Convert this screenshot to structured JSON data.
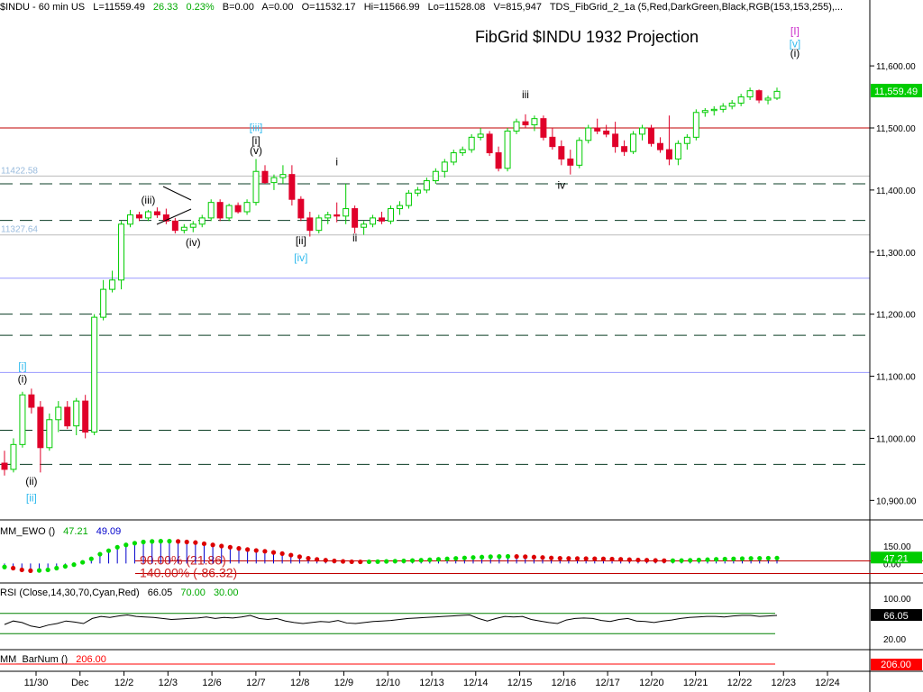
{
  "header": {
    "symbol": "$INDU - 60 min  US",
    "last": "L=11559.49",
    "change": "26.33",
    "change_pct": "0.23%",
    "bid": "B=0.00",
    "ask": "A=0.00",
    "open": "O=11532.17",
    "high": "Hi=11566.99",
    "low": "Lo=11528.08",
    "volume": "V=815,947",
    "indicator": "TDS_FibGrid_2_1a (5,Red,DarkGreen,Black,RGB(153,153,255),..."
  },
  "colors": {
    "up": "#00cc00",
    "down": "#e0002a",
    "fib_dashed": "#0b3d24",
    "fib_blue": "#9999ff",
    "fib_red": "#c00000",
    "wave_cyan": "#33bbee",
    "wave_magenta": "#cc33cc",
    "ewo_positive": "#00dd00",
    "ewo_negative": "#dd0000",
    "ewo_hist": "#0000cc",
    "rsi_line": "#000000",
    "rsi_bands": "#008000",
    "barnum": "#ff0000"
  },
  "chart_data": [
    {
      "type": "candlestick",
      "title": "FibGrid $INDU 1932 Projection",
      "ylim": [
        10870,
        11680
      ],
      "yticks": [
        "11,600.00",
        "11,500.00",
        "11,400.00",
        "11,300.00",
        "11,200.00",
        "11,100.00",
        "11,000.00",
        "10,900.00"
      ],
      "ytick_values": [
        11600,
        11500,
        11400,
        11300,
        11200,
        11100,
        11000,
        10900
      ],
      "last_price_label": "11,559.49",
      "last_price": 11559.49,
      "xticks": [
        "11/30",
        "Dec",
        "12/2",
        "12/3",
        "12/6",
        "12/7",
        "12/8",
        "12/9",
        "12/10",
        "12/13",
        "12/14",
        "12/15",
        "12/16",
        "12/17",
        "12/20",
        "12/21",
        "12/22",
        "12/23",
        "12/24"
      ],
      "price_lines": [
        {
          "value": 11500,
          "style": "red"
        },
        {
          "value": 11410,
          "style": "dashed"
        },
        {
          "value": 11351,
          "style": "dashed"
        },
        {
          "value": 11327.64,
          "style": "gray"
        },
        {
          "value": 11422.58,
          "style": "gray"
        },
        {
          "value": 11258,
          "style": "blue"
        },
        {
          "value": 11200,
          "style": "dashed"
        },
        {
          "value": 11166,
          "style": "dashed"
        },
        {
          "value": 11106,
          "style": "blue"
        },
        {
          "value": 11013,
          "style": "dashed"
        },
        {
          "value": 10958,
          "style": "dashed"
        }
      ],
      "level_labels": [
        "11422.58",
        "11327.64"
      ],
      "level_label_values": [
        11422.58,
        11327.64
      ],
      "wave_labels": [
        {
          "text": "[i]",
          "x": 2,
          "y": 11110,
          "color": "cyan"
        },
        {
          "text": "(i)",
          "x": 2,
          "y": 11090,
          "color": "black"
        },
        {
          "text": "(ii)",
          "x": 3,
          "y": 10925,
          "color": "black"
        },
        {
          "text": "[ii]",
          "x": 3,
          "y": 10898,
          "color": "cyan"
        },
        {
          "text": "(iii)",
          "x": 16,
          "y": 11378,
          "color": "black"
        },
        {
          "text": "(iv)",
          "x": 21,
          "y": 11310,
          "color": "black"
        },
        {
          "text": "[iii]",
          "x": 28,
          "y": 11495,
          "color": "cyan"
        },
        {
          "text": "[i]",
          "x": 28,
          "y": 11474,
          "color": "black"
        },
        {
          "text": "(v)",
          "x": 28,
          "y": 11458,
          "color": "black"
        },
        {
          "text": "[ii]",
          "x": 33,
          "y": 11313,
          "color": "black"
        },
        {
          "text": "[iv]",
          "x": 33,
          "y": 11285,
          "color": "cyan"
        },
        {
          "text": "i",
          "x": 37,
          "y": 11440,
          "color": "black"
        },
        {
          "text": "ii",
          "x": 39,
          "y": 11317,
          "color": "black"
        },
        {
          "text": "iii",
          "x": 58,
          "y": 11548,
          "color": "black"
        },
        {
          "text": "iv",
          "x": 62,
          "y": 11402,
          "color": "black"
        },
        {
          "text": "[I]",
          "x": 88,
          "y": 11650,
          "color": "magenta"
        },
        {
          "text": "[v]",
          "x": 88,
          "y": 11630,
          "color": "cyan"
        },
        {
          "text": "(i)",
          "x": 88,
          "y": 11615,
          "color": "black"
        }
      ],
      "ohlc": [
        [
          10960,
          10980,
          10940,
          10950
        ],
        [
          10950,
          11000,
          10945,
          10990
        ],
        [
          10990,
          11075,
          10985,
          11070
        ],
        [
          11070,
          11080,
          11040,
          11050
        ],
        [
          11050,
          11060,
          10945,
          10985
        ],
        [
          10985,
          11040,
          10980,
          11030
        ],
        [
          11030,
          11060,
          11010,
          11050
        ],
        [
          11050,
          11060,
          11015,
          11020
        ],
        [
          11020,
          11065,
          11005,
          11060
        ],
        [
          11060,
          11070,
          11000,
          11010
        ],
        [
          11010,
          11200,
          11005,
          11195
        ],
        [
          11195,
          11255,
          11190,
          11240
        ],
        [
          11240,
          11270,
          11235,
          11255
        ],
        [
          11255,
          11350,
          11240,
          11345
        ],
        [
          11345,
          11368,
          11340,
          11360
        ],
        [
          11360,
          11365,
          11350,
          11355
        ],
        [
          11355,
          11368,
          11350,
          11365
        ],
        [
          11365,
          11372,
          11355,
          11360
        ],
        [
          11360,
          11370,
          11345,
          11350
        ],
        [
          11350,
          11355,
          11330,
          11335
        ],
        [
          11335,
          11345,
          11330,
          11340
        ],
        [
          11340,
          11350,
          11332,
          11345
        ],
        [
          11345,
          11360,
          11340,
          11355
        ],
        [
          11355,
          11385,
          11350,
          11380
        ],
        [
          11380,
          11385,
          11350,
          11355
        ],
        [
          11355,
          11378,
          11350,
          11375
        ],
        [
          11375,
          11380,
          11362,
          11365
        ],
        [
          11365,
          11385,
          11360,
          11380
        ],
        [
          11380,
          11450,
          11375,
          11430
        ],
        [
          11430,
          11440,
          11410,
          11412
        ],
        [
          11412,
          11425,
          11400,
          11420
        ],
        [
          11420,
          11440,
          11410,
          11425
        ],
        [
          11425,
          11440,
          11375,
          11385
        ],
        [
          11385,
          11390,
          11350,
          11355
        ],
        [
          11355,
          11365,
          11325,
          11335
        ],
        [
          11335,
          11360,
          11330,
          11355
        ],
        [
          11355,
          11365,
          11345,
          11360
        ],
        [
          11360,
          11380,
          11348,
          11358
        ],
        [
          11358,
          11410,
          11345,
          11370
        ],
        [
          11370,
          11375,
          11330,
          11340
        ],
        [
          11340,
          11350,
          11328,
          11345
        ],
        [
          11345,
          11360,
          11340,
          11355
        ],
        [
          11355,
          11365,
          11345,
          11350
        ],
        [
          11350,
          11375,
          11345,
          11370
        ],
        [
          11370,
          11382,
          11360,
          11375
        ],
        [
          11375,
          11400,
          11370,
          11395
        ],
        [
          11395,
          11405,
          11390,
          11400
        ],
        [
          11400,
          11420,
          11395,
          11415
        ],
        [
          11415,
          11435,
          11410,
          11430
        ],
        [
          11430,
          11450,
          11420,
          11445
        ],
        [
          11445,
          11465,
          11440,
          11460
        ],
        [
          11460,
          11470,
          11455,
          11465
        ],
        [
          11465,
          11490,
          11460,
          11485
        ],
        [
          11485,
          11500,
          11480,
          11490
        ],
        [
          11490,
          11495,
          11455,
          11460
        ],
        [
          11460,
          11470,
          11430,
          11435
        ],
        [
          11435,
          11500,
          11430,
          11495
        ],
        [
          11495,
          11515,
          11490,
          11510
        ],
        [
          11510,
          11522,
          11500,
          11505
        ],
        [
          11505,
          11520,
          11495,
          11515
        ],
        [
          11515,
          11520,
          11480,
          11485
        ],
        [
          11485,
          11500,
          11465,
          11470
        ],
        [
          11470,
          11480,
          11440,
          11450
        ],
        [
          11450,
          11465,
          11425,
          11440
        ],
        [
          11440,
          11485,
          11435,
          11480
        ],
        [
          11480,
          11505,
          11475,
          11500
        ],
        [
          11500,
          11515,
          11490,
          11495
        ],
        [
          11495,
          11505,
          11485,
          11490
        ],
        [
          11490,
          11510,
          11460,
          11470
        ],
        [
          11470,
          11480,
          11455,
          11462
        ],
        [
          11462,
          11495,
          11458,
          11490
        ],
        [
          11490,
          11505,
          11480,
          11500
        ],
        [
          11500,
          11505,
          11470,
          11475
        ],
        [
          11475,
          11485,
          11460,
          11465
        ],
        [
          11465,
          11520,
          11440,
          11450
        ],
        [
          11450,
          11480,
          11440,
          11475
        ],
        [
          11475,
          11490,
          11465,
          11485
        ],
        [
          11485,
          11530,
          11480,
          11525
        ],
        [
          11525,
          11532,
          11518,
          11528
        ],
        [
          11528,
          11535,
          11520,
          11530
        ],
        [
          11530,
          11540,
          11525,
          11535
        ],
        [
          11535,
          11545,
          11530,
          11540
        ],
        [
          11540,
          11555,
          11535,
          11550
        ],
        [
          11550,
          11565,
          11545,
          11560
        ],
        [
          11560,
          11562,
          11540,
          11545
        ],
        [
          11545,
          11552,
          11538,
          11548
        ],
        [
          11548,
          11565,
          11545,
          11559
        ]
      ]
    },
    {
      "type": "oscillator",
      "name": "MM_EWO ()",
      "value_1": "47.21",
      "value_2": "49.09",
      "current_label": "47.21",
      "ylim": [
        -160,
        220
      ],
      "yticks": [
        "150.00",
        "0.00"
      ],
      "ytick_values": [
        150,
        0
      ],
      "fib_levels": [
        {
          "label": "90.00% (21.86)",
          "value": 21.86
        },
        {
          "label": "140.00% (-86.32)",
          "value": -86.32
        }
      ],
      "values": [
        -30,
        -40,
        -55,
        -62,
        -60,
        -55,
        -40,
        -25,
        -10,
        10,
        40,
        80,
        110,
        140,
        160,
        175,
        185,
        190,
        192,
        192,
        190,
        185,
        180,
        170,
        160,
        150,
        140,
        130,
        120,
        112,
        105,
        95,
        85,
        72,
        58,
        45,
        35,
        28,
        22,
        18,
        15,
        14,
        15,
        16,
        18,
        20,
        22,
        25,
        28,
        32,
        36,
        40,
        44,
        48,
        52,
        55,
        58,
        60,
        61,
        60,
        58,
        55,
        52,
        48,
        45,
        44,
        43,
        42,
        41,
        40,
        38,
        36,
        33,
        30,
        28,
        26,
        24,
        24,
        25,
        27,
        30,
        33,
        36,
        38,
        40,
        42,
        44,
        45,
        46,
        47
      ]
    },
    {
      "type": "line",
      "name": "RSI (Close,14,30,70,Cyan,Red)",
      "value": "66.05",
      "upper_band": "70.00",
      "lower_band": "30.00",
      "current_label": "66.05",
      "ylim": [
        0,
        100
      ],
      "upper_band_value": 70,
      "lower_band_value": 30,
      "yticks": [
        "100.00",
        "20.00"
      ],
      "ytick_values": [
        100,
        20
      ],
      "values": [
        48,
        55,
        52,
        45,
        42,
        47,
        50,
        55,
        53,
        50,
        60,
        64,
        62,
        65,
        67,
        64,
        63,
        62,
        60,
        58,
        59,
        60,
        61,
        63,
        60,
        62,
        61,
        63,
        66,
        60,
        58,
        60,
        55,
        52,
        50,
        52,
        54,
        53,
        56,
        51,
        50,
        52,
        54,
        55,
        56,
        58,
        60,
        61,
        62,
        63,
        64,
        65,
        66,
        67,
        60,
        55,
        60,
        64,
        63,
        64,
        58,
        55,
        52,
        50,
        57,
        60,
        61,
        60,
        56,
        54,
        58,
        60,
        55,
        54,
        52,
        55,
        57,
        60,
        62,
        63,
        64,
        64,
        63,
        65,
        66,
        66,
        64,
        65,
        66
      ]
    },
    {
      "type": "line",
      "name": "MM_BarNum ()",
      "value": "206.00",
      "current_label": "206.00",
      "ylim": [
        0,
        240
      ],
      "current": 206
    }
  ]
}
